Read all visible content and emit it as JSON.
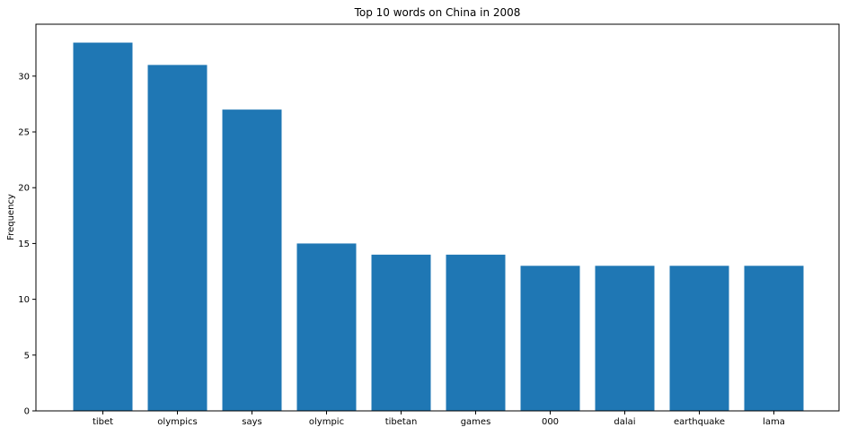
{
  "chart_data": {
    "type": "bar",
    "title": "Top 10 words on China in 2008",
    "xlabel": "",
    "ylabel": "Frequency",
    "categories": [
      "tibet",
      "olympics",
      "says",
      "olympic",
      "tibetan",
      "games",
      "000",
      "dalai",
      "earthquake",
      "lama"
    ],
    "values": [
      33,
      31,
      27,
      15,
      14,
      14,
      13,
      13,
      13,
      13
    ],
    "ylim": [
      0,
      34.65
    ],
    "yticks": [
      0,
      5,
      10,
      15,
      20,
      25,
      30
    ],
    "grid": false,
    "bar_color": "#1f77b4"
  }
}
